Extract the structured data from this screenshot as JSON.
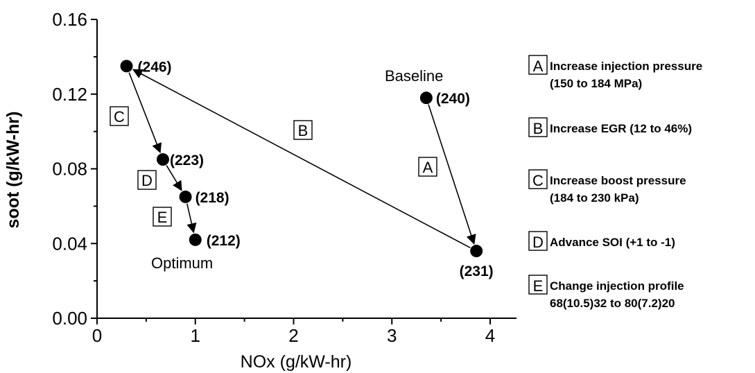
{
  "chart_data": {
    "type": "scatter",
    "xlabel": "NOx (g/kW-hr)",
    "ylabel": "soot (g/kW-hr)",
    "xlim": [
      0,
      4.25
    ],
    "ylim": [
      0,
      0.16
    ],
    "xticks": [
      "0",
      "1",
      "2",
      "3",
      "4"
    ],
    "yticks": [
      "0.00",
      "0.04",
      "0.08",
      "0.12",
      "0.16"
    ],
    "grid": false,
    "points": [
      {
        "id": "baseline",
        "x": 3.35,
        "y": 0.118,
        "label": "(240)"
      },
      {
        "id": "p231",
        "x": 3.86,
        "y": 0.036,
        "label": "(231)"
      },
      {
        "id": "p246",
        "x": 0.3,
        "y": 0.135,
        "label": "(246)"
      },
      {
        "id": "p223",
        "x": 0.67,
        "y": 0.085,
        "label": "(223)"
      },
      {
        "id": "p218",
        "x": 0.9,
        "y": 0.065,
        "label": "(218)"
      },
      {
        "id": "p212",
        "x": 1.0,
        "y": 0.042,
        "label": "(212)"
      }
    ],
    "arrows": [
      {
        "letter": "A",
        "from": "baseline",
        "to": "p231"
      },
      {
        "letter": "B",
        "from": "p231",
        "to": "p246"
      },
      {
        "letter": "C",
        "from": "p246",
        "to": "p223"
      },
      {
        "letter": "D",
        "from": "p223",
        "to": "p218"
      },
      {
        "letter": "E",
        "from": "p218",
        "to": "p212"
      }
    ],
    "annotations": {
      "baseline": "Baseline",
      "optimum": "Optimum"
    },
    "legend": [
      {
        "letter": "A",
        "lines": [
          "Increase injection pressure",
          "(150 to 184 MPa)"
        ]
      },
      {
        "letter": "B",
        "lines": [
          "Increase EGR (12 to 46%)"
        ]
      },
      {
        "letter": "C",
        "lines": [
          "Increase boost pressure",
          "(184 to 230 kPa)"
        ]
      },
      {
        "letter": "D",
        "lines": [
          "Advance SOI (+1 to -1)"
        ]
      },
      {
        "letter": "E",
        "lines": [
          "Change injection profile",
          "68(10.5)32 to 80(7.2)20"
        ]
      }
    ]
  }
}
